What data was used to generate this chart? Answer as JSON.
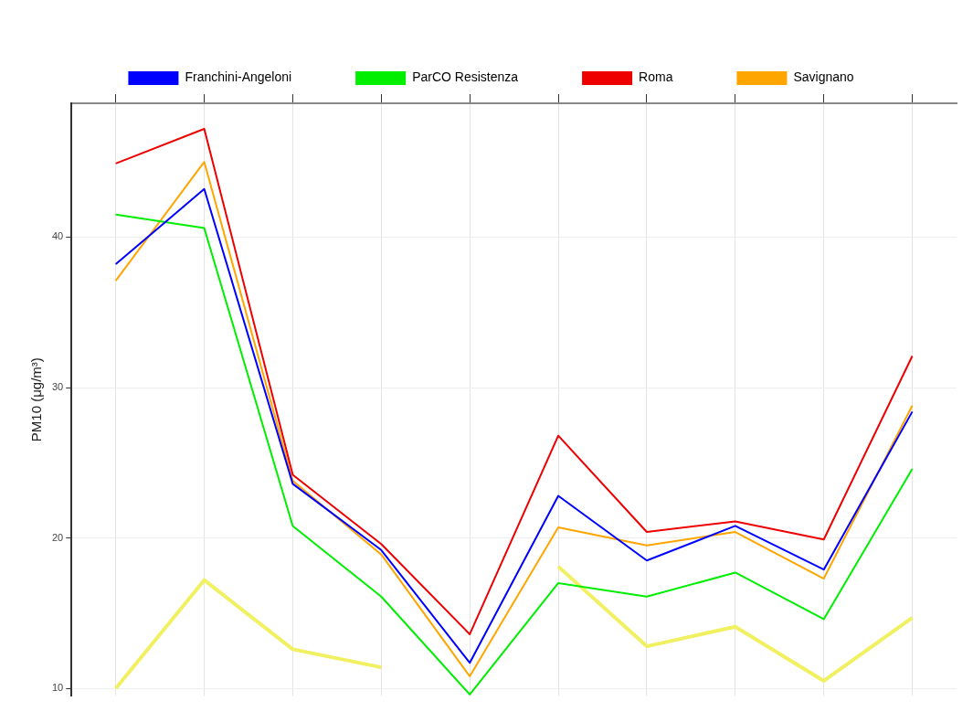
{
  "chart_data": {
    "type": "line",
    "ylabel": "PM10 (μg/m³)",
    "categories": [
      null,
      null,
      null,
      null,
      null,
      null,
      null,
      null,
      null,
      null
    ],
    "series": [
      {
        "name": "Franchini-Angeloni",
        "color": "#0000ff",
        "values": [
          38.2,
          43.2,
          23.6,
          19.2,
          11.7,
          22.8,
          18.5,
          20.8,
          17.9,
          28.4
        ]
      },
      {
        "name": "ParCO Resistenza",
        "color": "#00ee00",
        "values": [
          41.5,
          40.6,
          20.8,
          16.1,
          9.6,
          17.0,
          16.1,
          17.7,
          14.6,
          24.6
        ]
      },
      {
        "name": "Roma",
        "color": "#ee0000",
        "values": [
          44.9,
          47.2,
          24.2,
          19.6,
          13.6,
          26.8,
          20.4,
          21.1,
          19.9,
          32.1
        ]
      },
      {
        "name": "Savignano",
        "color": "#ffa500",
        "values": [
          37.1,
          45.0,
          23.8,
          18.9,
          10.8,
          20.7,
          19.5,
          20.4,
          17.3,
          28.8
        ]
      },
      {
        "color": "#f0f060",
        "values": [
          10.0,
          17.2,
          12.6,
          11.4,
          null,
          18.1,
          12.8,
          14.1,
          10.5,
          14.7
        ]
      }
    ],
    "ylim": [
      9.5,
      48.9
    ],
    "yticks": [
      10,
      20,
      30,
      40
    ],
    "grid": true,
    "legend": "top",
    "tick_labels": "y",
    "marker": "none",
    "line_style": "solid"
  }
}
